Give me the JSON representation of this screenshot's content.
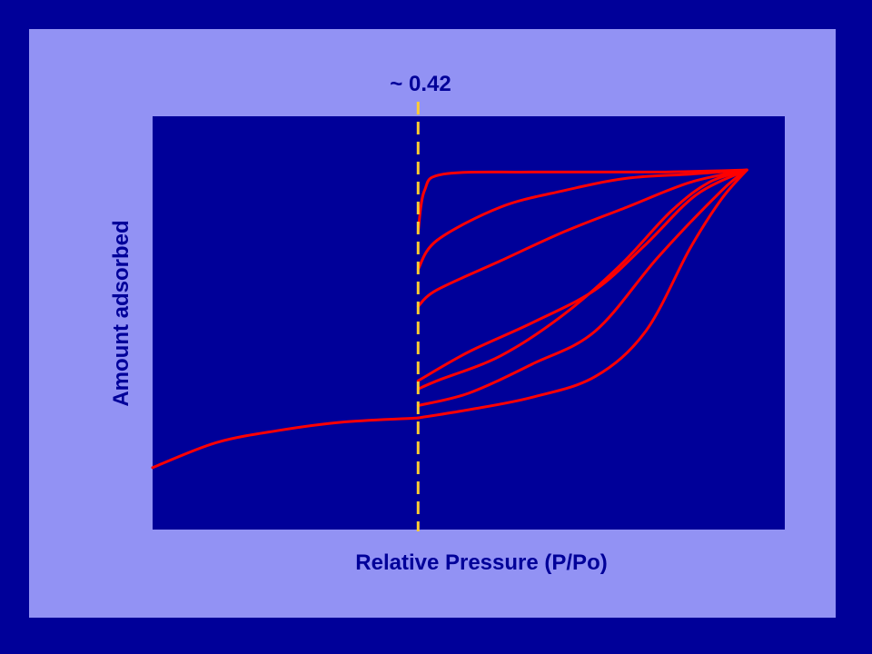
{
  "colors": {
    "page_background": "#000099",
    "frame_background": "#9292F4",
    "plot_background": "#000099",
    "curve": "#FF0000",
    "marker_line": "#FFCC33",
    "text": "#000099"
  },
  "chart_data": {
    "type": "line",
    "title": "",
    "xlabel": "Relative Pressure (P/Po)",
    "ylabel": "Amount adsorbed",
    "xlim": [
      0,
      1
    ],
    "ylim": [
      0,
      1
    ],
    "grid": false,
    "legend": "none",
    "ticks_shown": false,
    "marker": {
      "x": 0.42,
      "label": "~ 0.42",
      "style": "dashed"
    },
    "series": [
      {
        "values": [
          [
            0,
            0.15
          ],
          [
            0.1,
            0.21
          ],
          [
            0.2,
            0.24
          ],
          [
            0.3,
            0.26
          ],
          [
            0.42,
            0.27
          ]
        ]
      },
      {
        "values": [
          [
            0.42,
            0.27
          ],
          [
            0.5,
            0.29
          ],
          [
            0.6,
            0.32
          ],
          [
            0.7,
            0.37
          ],
          [
            0.78,
            0.48
          ],
          [
            0.85,
            0.68
          ],
          [
            0.9,
            0.8
          ],
          [
            0.94,
            0.87
          ]
        ]
      },
      {
        "values": [
          [
            0.42,
            0.3
          ],
          [
            0.5,
            0.33
          ],
          [
            0.6,
            0.4
          ],
          [
            0.7,
            0.48
          ],
          [
            0.8,
            0.66
          ],
          [
            0.9,
            0.82
          ],
          [
            0.94,
            0.87
          ]
        ]
      },
      {
        "values": [
          [
            0.42,
            0.34
          ],
          [
            0.45,
            0.36
          ],
          [
            0.55,
            0.42
          ],
          [
            0.65,
            0.52
          ],
          [
            0.74,
            0.64
          ],
          [
            0.82,
            0.77
          ],
          [
            0.88,
            0.84
          ],
          [
            0.94,
            0.87
          ]
        ]
      },
      {
        "values": [
          [
            0.42,
            0.36
          ],
          [
            0.5,
            0.43
          ],
          [
            0.6,
            0.5
          ],
          [
            0.7,
            0.58
          ],
          [
            0.78,
            0.69
          ],
          [
            0.86,
            0.81
          ],
          [
            0.94,
            0.87
          ]
        ]
      },
      {
        "values": [
          [
            0.42,
            0.54
          ],
          [
            0.45,
            0.58
          ],
          [
            0.55,
            0.65
          ],
          [
            0.65,
            0.72
          ],
          [
            0.75,
            0.78
          ],
          [
            0.85,
            0.84
          ],
          [
            0.94,
            0.87
          ]
        ]
      },
      {
        "values": [
          [
            0.42,
            0.63
          ],
          [
            0.45,
            0.7
          ],
          [
            0.55,
            0.78
          ],
          [
            0.65,
            0.82
          ],
          [
            0.75,
            0.85
          ],
          [
            0.85,
            0.86
          ],
          [
            0.94,
            0.87
          ]
        ]
      },
      {
        "values": [
          [
            0.42,
            0.72
          ],
          [
            0.43,
            0.82
          ],
          [
            0.46,
            0.86
          ],
          [
            0.6,
            0.865
          ],
          [
            0.8,
            0.865
          ],
          [
            0.94,
            0.87
          ]
        ]
      }
    ]
  }
}
